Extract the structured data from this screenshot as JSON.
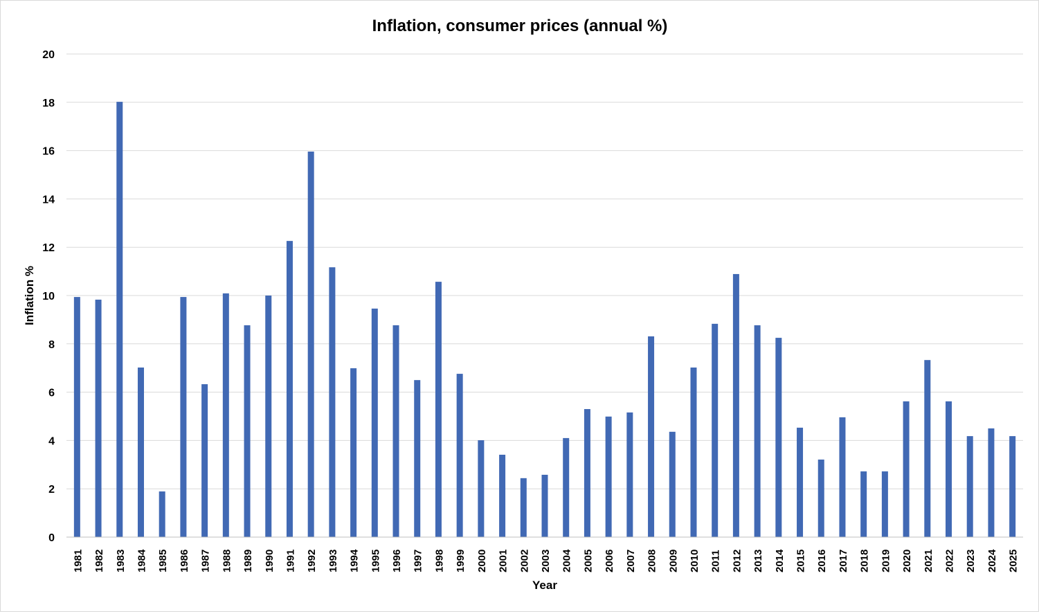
{
  "chart_data": {
    "type": "bar",
    "title": "Inflation, consumer prices (annual %)",
    "xlabel": "Year",
    "ylabel": "Inflation %",
    "ylim": [
      0,
      20
    ],
    "yticks": [
      0,
      2,
      4,
      6,
      8,
      10,
      12,
      14,
      16,
      18,
      20
    ],
    "grid": true,
    "bar_color": "#4169b4",
    "categories": [
      "1981",
      "1982",
      "1983",
      "1984",
      "1985",
      "1986",
      "1987",
      "1988",
      "1989",
      "1990",
      "1991",
      "1992",
      "1993",
      "1994",
      "1995",
      "1996",
      "1997",
      "1998",
      "1999",
      "2000",
      "2001",
      "2002",
      "2003",
      "2004",
      "2005",
      "2006",
      "2007",
      "2008",
      "2009",
      "2010",
      "2011",
      "2012",
      "2013",
      "2014",
      "2015",
      "2016",
      "2017",
      "2018",
      "2019",
      "2020",
      "2021",
      "2022",
      "2023",
      "2024",
      "2025"
    ],
    "values": [
      9.94,
      9.83,
      18.02,
      7.02,
      1.89,
      9.94,
      6.33,
      10.09,
      8.77,
      10.0,
      12.26,
      15.96,
      11.17,
      6.99,
      9.46,
      8.77,
      6.5,
      10.57,
      6.76,
      4.01,
      3.41,
      2.44,
      2.58,
      4.1,
      5.3,
      4.99,
      5.16,
      8.31,
      4.36,
      7.02,
      8.83,
      10.89,
      8.77,
      8.25,
      4.53,
      3.21,
      4.96,
      2.72,
      2.72,
      5.62,
      7.33,
      5.62,
      4.18,
      4.5,
      4.18
    ]
  }
}
